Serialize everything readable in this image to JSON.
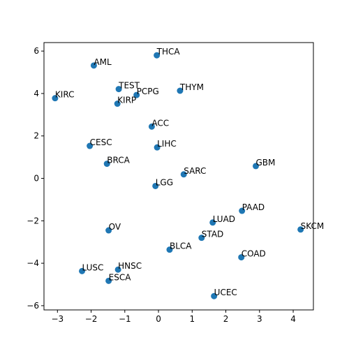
{
  "chart_data": {
    "type": "scatter",
    "title": "",
    "xlabel": "",
    "ylabel": "",
    "xlim": [
      -3.4,
      4.6
    ],
    "ylim": [
      -6.2,
      6.4
    ],
    "xticks": [
      -3,
      -2,
      -1,
      0,
      1,
      2,
      3,
      4
    ],
    "yticks": [
      -6,
      -4,
      -2,
      0,
      2,
      4,
      6
    ],
    "xtick_labels": [
      "−3",
      "−2",
      "−1",
      "0",
      "1",
      "2",
      "3",
      "4"
    ],
    "ytick_labels": [
      "−6",
      "−4",
      "−2",
      "0",
      "2",
      "4",
      "6"
    ],
    "grid": false,
    "marker_color": "#1f77b4",
    "points": [
      {
        "label": "THCA",
        "x": -0.05,
        "y": 5.8
      },
      {
        "label": "AML",
        "x": -1.92,
        "y": 5.32
      },
      {
        "label": "TEST",
        "x": -1.18,
        "y": 4.21
      },
      {
        "label": "PCPG",
        "x": -0.65,
        "y": 3.93
      },
      {
        "label": "THYM",
        "x": 0.64,
        "y": 4.13
      },
      {
        "label": "KIRC",
        "x": -3.07,
        "y": 3.78
      },
      {
        "label": "KIRP",
        "x": -1.22,
        "y": 3.52
      },
      {
        "label": "ACC",
        "x": -0.2,
        "y": 2.44
      },
      {
        "label": "CESC",
        "x": -2.04,
        "y": 1.53
      },
      {
        "label": "LIHC",
        "x": -0.04,
        "y": 1.46
      },
      {
        "label": "BRCA",
        "x": -1.53,
        "y": 0.69
      },
      {
        "label": "GBM",
        "x": 2.89,
        "y": 0.58
      },
      {
        "label": "SARC",
        "x": 0.75,
        "y": 0.19
      },
      {
        "label": "LGG",
        "x": -0.09,
        "y": -0.36
      },
      {
        "label": "PAAD",
        "x": 2.48,
        "y": -1.53
      },
      {
        "label": "LUAD",
        "x": 1.61,
        "y": -2.08
      },
      {
        "label": "SKCM",
        "x": 4.22,
        "y": -2.41
      },
      {
        "label": "OV",
        "x": -1.48,
        "y": -2.45
      },
      {
        "label": "STAD",
        "x": 1.28,
        "y": -2.8
      },
      {
        "label": "BLCA",
        "x": 0.33,
        "y": -3.36
      },
      {
        "label": "COAD",
        "x": 2.46,
        "y": -3.72
      },
      {
        "label": "LUSC",
        "x": -2.27,
        "y": -4.37
      },
      {
        "label": "HNSC",
        "x": -1.2,
        "y": -4.3
      },
      {
        "label": "ESCA",
        "x": -1.48,
        "y": -4.83
      },
      {
        "label": "UCEC",
        "x": 1.65,
        "y": -5.55
      }
    ]
  }
}
